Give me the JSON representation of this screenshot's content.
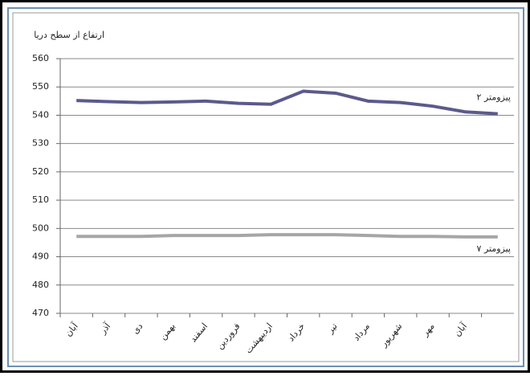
{
  "chart_data": {
    "type": "line",
    "title": "ارتفاع از سطح دریا",
    "categories": [
      "آبان",
      "آذر",
      "دی",
      "بهمن",
      "اسفند",
      "فروردین",
      "اردیبهشت",
      "خرداد",
      "تیر",
      "مرداد",
      "شهریور",
      "مهر",
      "آبان",
      null
    ],
    "series": [
      {
        "name": "پیزومتر ۲",
        "color": "#5b5a8c",
        "values": [
          545.2,
          544.8,
          544.5,
          544.7,
          545,
          544.2,
          543.9,
          548.5,
          547.8,
          545,
          544.5,
          543.2,
          541.2,
          540.5
        ]
      },
      {
        "name": "پیزومتر ۷",
        "color": "#a6a6a6",
        "values": [
          497.2,
          497.2,
          497.2,
          497.5,
          497.5,
          497.5,
          497.8,
          497.8,
          497.8,
          497.5,
          497.2,
          497.2,
          497,
          497
        ]
      }
    ],
    "ylim": [
      470,
      560
    ],
    "yticks": [
      470,
      480,
      490,
      500,
      510,
      520,
      530,
      540,
      550,
      560
    ],
    "grid": true
  }
}
